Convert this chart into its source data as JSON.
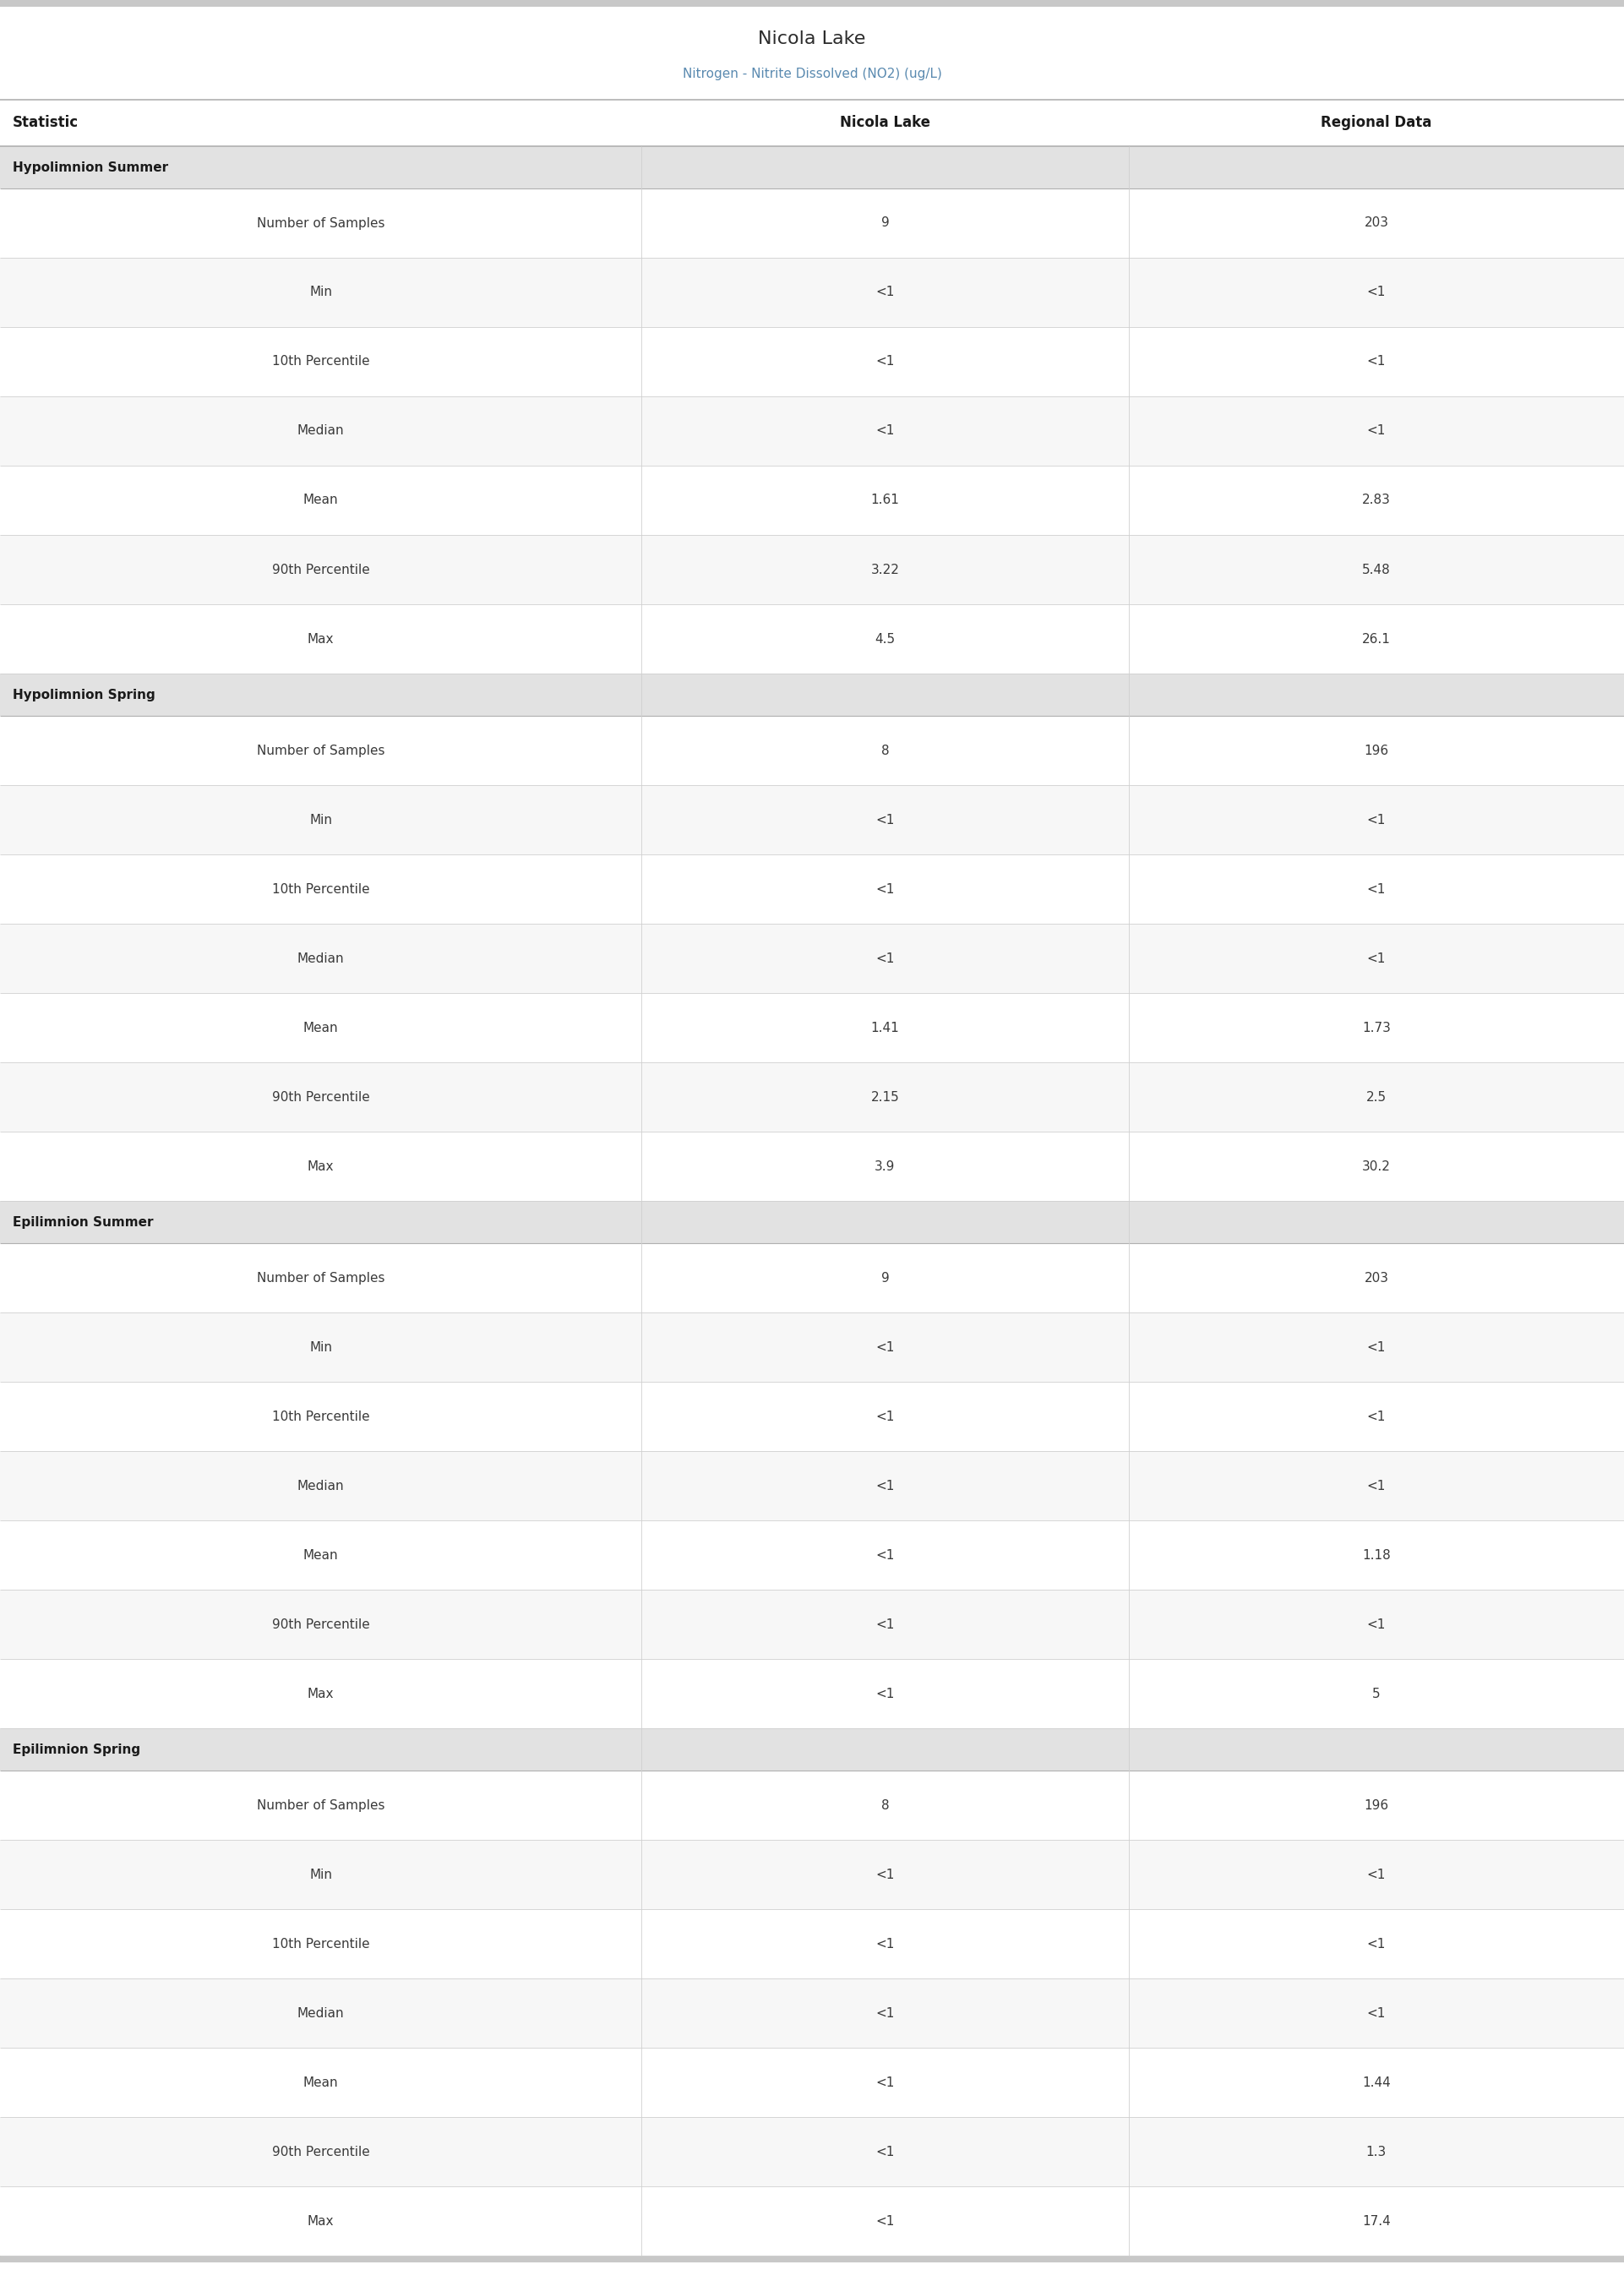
{
  "title": "Nicola Lake",
  "subtitle": "Nitrogen - Nitrite Dissolved (NO2) (ug/L)",
  "col_headers": [
    "Statistic",
    "Nicola Lake",
    "Regional Data"
  ],
  "sections": [
    {
      "name": "Hypolimnion Summer",
      "rows": [
        [
          "Number of Samples",
          "9",
          "203"
        ],
        [
          "Min",
          "<1",
          "<1"
        ],
        [
          "10th Percentile",
          "<1",
          "<1"
        ],
        [
          "Median",
          "<1",
          "<1"
        ],
        [
          "Mean",
          "1.61",
          "2.83"
        ],
        [
          "90th Percentile",
          "3.22",
          "5.48"
        ],
        [
          "Max",
          "4.5",
          "26.1"
        ]
      ]
    },
    {
      "name": "Hypolimnion Spring",
      "rows": [
        [
          "Number of Samples",
          "8",
          "196"
        ],
        [
          "Min",
          "<1",
          "<1"
        ],
        [
          "10th Percentile",
          "<1",
          "<1"
        ],
        [
          "Median",
          "<1",
          "<1"
        ],
        [
          "Mean",
          "1.41",
          "1.73"
        ],
        [
          "90th Percentile",
          "2.15",
          "2.5"
        ],
        [
          "Max",
          "3.9",
          "30.2"
        ]
      ]
    },
    {
      "name": "Epilimnion Summer",
      "rows": [
        [
          "Number of Samples",
          "9",
          "203"
        ],
        [
          "Min",
          "<1",
          "<1"
        ],
        [
          "10th Percentile",
          "<1",
          "<1"
        ],
        [
          "Median",
          "<1",
          "<1"
        ],
        [
          "Mean",
          "<1",
          "1.18"
        ],
        [
          "90th Percentile",
          "<1",
          "<1"
        ],
        [
          "Max",
          "<1",
          "5"
        ]
      ]
    },
    {
      "name": "Epilimnion Spring",
      "rows": [
        [
          "Number of Samples",
          "8",
          "196"
        ],
        [
          "Min",
          "<1",
          "<1"
        ],
        [
          "10th Percentile",
          "<1",
          "<1"
        ],
        [
          "Median",
          "<1",
          "<1"
        ],
        [
          "Mean",
          "<1",
          "1.44"
        ],
        [
          "90th Percentile",
          "<1",
          "1.3"
        ],
        [
          "Max",
          "<1",
          "17.4"
        ]
      ]
    }
  ],
  "title_color": "#2c2c2c",
  "subtitle_color": "#5a8ab0",
  "header_text_color": "#1a1a1a",
  "section_bg_color": "#e2e2e2",
  "section_text_color": "#1a1a1a",
  "row_bg_white": "#ffffff",
  "row_bg_alt": "#f7f7f7",
  "stat_text_color": "#3a3a3a",
  "data_text_color": "#3a3a3a",
  "divider_color": "#d0d0d0",
  "header_divider_color": "#b0b0b0",
  "top_bar_color": "#c8c8c8",
  "bottom_bar_color": "#c8c8c8",
  "col_split1": 0.395,
  "col_split2": 0.695,
  "title_fontsize": 16,
  "subtitle_fontsize": 11,
  "header_fontsize": 12,
  "section_fontsize": 11,
  "data_fontsize": 11
}
